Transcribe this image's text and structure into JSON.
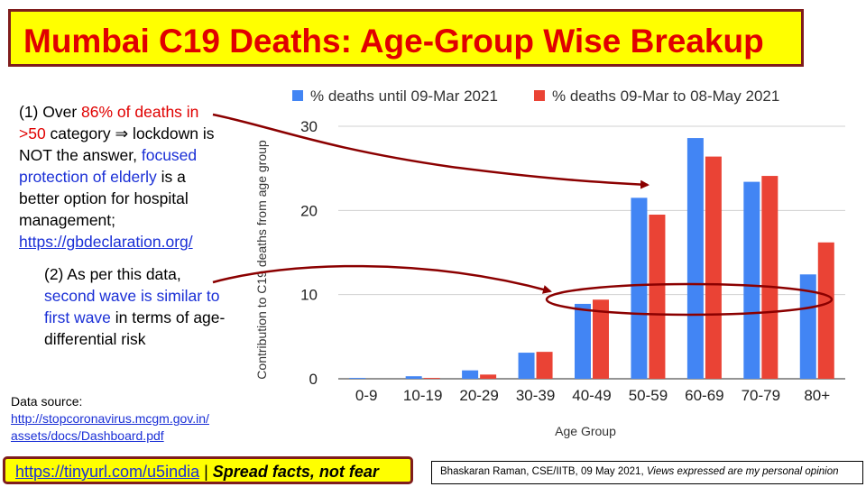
{
  "title": "Mumbai C19 Deaths: Age-Group Wise Breakup",
  "note1": {
    "p1": "(1) Over ",
    "p2": "86% of deaths in >50",
    "p3": " category ⇒ lockdown is NOT the answer, ",
    "p4": "focused protection of elderly",
    "p5": " is a better option for hospital management; ",
    "link": "https://gbdeclaration.org/"
  },
  "note2": {
    "p1": "(2) As per this data, ",
    "p2": "second wave is similar to first wave",
    "p3": " in terms of age-differential risk"
  },
  "source": {
    "label": "Data source:",
    "link1": "http://stopcoronavirus.mcgm.gov.in/",
    "link2": "assets/docs/Dashboard.pdf"
  },
  "footer": {
    "link": "https://tinyurl.com/u5india",
    "sep": " | ",
    "slogan": "Spread facts, not fear",
    "credit": "Bhaskaran Raman, CSE/IITB, 09 May 2021, ",
    "opinion": "Views expressed are my personal opinion"
  },
  "colors": {
    "series1": "#4285f4",
    "series2": "#ea4335",
    "arrow": "#8b0000",
    "title": "#e00000",
    "titlebg": "#ffff00"
  },
  "chart_data": {
    "type": "bar",
    "categories": [
      "0-9",
      "10-19",
      "20-29",
      "30-39",
      "40-49",
      "50-59",
      "60-69",
      "70-79",
      "80+"
    ],
    "series": [
      {
        "name": "% deaths until 09-Mar 2021",
        "values": [
          0.1,
          0.3,
          1.0,
          3.1,
          8.9,
          21.5,
          28.6,
          23.4,
          12.4
        ]
      },
      {
        "name": "% deaths 09-Mar to 08-May 2021",
        "values": [
          0.0,
          0.1,
          0.5,
          3.2,
          9.4,
          19.5,
          26.4,
          24.1,
          16.2
        ]
      }
    ],
    "ylim": [
      0,
      30
    ],
    "yticks": [
      0,
      10,
      20,
      30
    ],
    "xlabel": "Age Group",
    "ylabel": "Contribution to C19 deaths from age group",
    "legend": "top"
  }
}
